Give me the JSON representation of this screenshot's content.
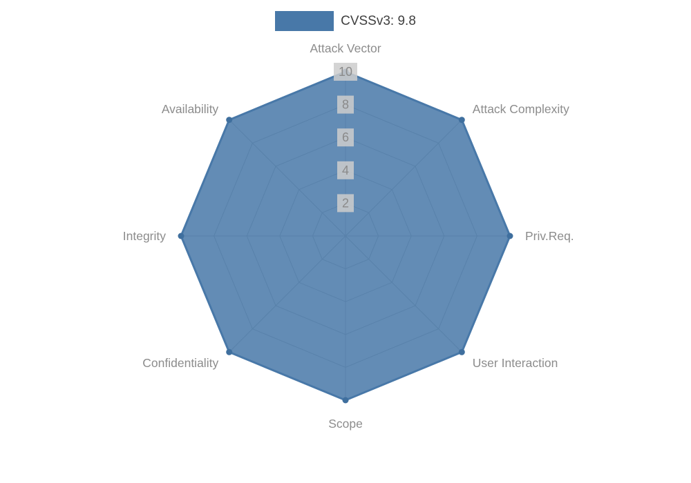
{
  "legend": {
    "label": "CVSSv3: 9.8"
  },
  "chart_data": {
    "type": "radar",
    "title": "",
    "categories": [
      "Attack Vector",
      "Attack Complexity",
      "Priv.Req.",
      "User Interaction",
      "Scope",
      "Confidentiality",
      "Integrity",
      "Availability"
    ],
    "series": [
      {
        "name": "CVSSv3: 9.8",
        "values": [
          10,
          10,
          10,
          10,
          10,
          10,
          10,
          10
        ],
        "color": "#4878a8",
        "marker_color": "#3f6f9e"
      }
    ],
    "rmax": 10,
    "ticks": [
      2,
      4,
      6,
      8,
      10
    ],
    "grid": true,
    "grid_color": "#b3b3b3",
    "tick_label_color": "#8a8a8a",
    "tick_label_bg": "#cccccc",
    "axis_label_color": "#8c8c8c",
    "fill_opacity": 0.85,
    "legend_position": "top"
  }
}
